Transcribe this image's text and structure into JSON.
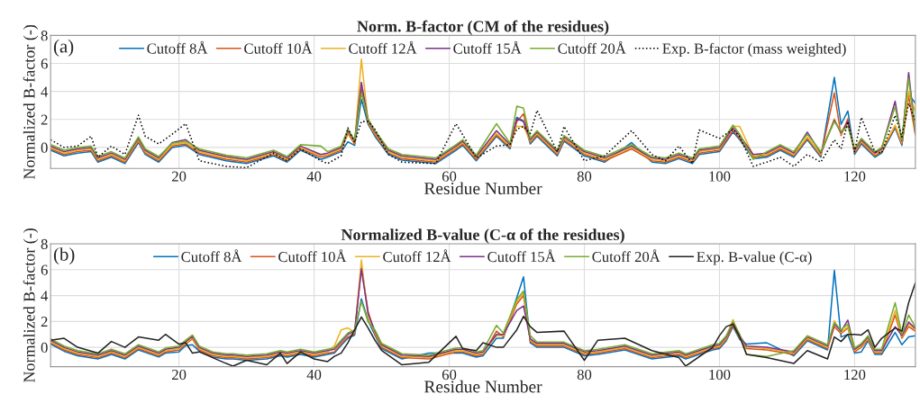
{
  "chart_data": [
    {
      "type": "line",
      "title": "Norm. B-factor (CM of the residues)",
      "xlabel": "Residue Number",
      "ylabel": "Normalized B-factor (-)",
      "annotations": [
        "(a)"
      ],
      "x": [
        1,
        3,
        5,
        7,
        8,
        10,
        12,
        14,
        15,
        17,
        19,
        21,
        23,
        27,
        30,
        34,
        36,
        38,
        41,
        42,
        44,
        45,
        46,
        47,
        48,
        49,
        51,
        53,
        58,
        61,
        62,
        64,
        67,
        69,
        70,
        71,
        72,
        73,
        76,
        77,
        80,
        83,
        87,
        90,
        92,
        94,
        96,
        97,
        100,
        102,
        103,
        105,
        107,
        109,
        111,
        113,
        115,
        117,
        118,
        119,
        120,
        121,
        123,
        124,
        126,
        127,
        128,
        129
      ],
      "xlim": [
        1,
        129
      ],
      "xticks": [
        20,
        40,
        60,
        80,
        100,
        120
      ],
      "ylim": [
        -1.5,
        8
      ],
      "yticks": [
        0,
        2,
        4,
        6,
        8
      ],
      "grid": true,
      "legend": "top",
      "line_style": "solid",
      "series": [
        {
          "name": "Cutoff 8Å",
          "color": "#0072bd",
          "values": [
            -0.2,
            -0.6,
            -0.4,
            -0.3,
            -1.05,
            -0.7,
            -1.15,
            0.35,
            -0.5,
            -1.05,
            0,
            0.15,
            -0.5,
            -0.95,
            -1.15,
            -0.6,
            -1.05,
            -0.2,
            -0.85,
            -0.7,
            -0.3,
            0.4,
            0.15,
            3.45,
            1.65,
            0.8,
            -0.5,
            -0.9,
            -1.15,
            -0.2,
            0.15,
            -0.95,
            0.8,
            -0.1,
            2.15,
            1.9,
            0.25,
            0.8,
            -0.6,
            0.45,
            -0.6,
            -1.05,
            0.35,
            -1.05,
            -1.15,
            -0.8,
            -1.15,
            -0.5,
            -0.3,
            1.1,
            0.55,
            -0.8,
            -0.7,
            -0.2,
            -0.7,
            0.55,
            -0.7,
            5.0,
            1.65,
            2.6,
            -0.5,
            0.25,
            -0.7,
            -0.4,
            1.4,
            0.15,
            3.8,
            3.15
          ]
        },
        {
          "name": "Cutoff 10Å",
          "color": "#d95319",
          "values": [
            -0.1,
            -0.5,
            -0.3,
            -0.2,
            -0.95,
            -0.6,
            -1.05,
            0.45,
            -0.4,
            -0.95,
            0.1,
            0.25,
            -0.4,
            -0.85,
            -1.05,
            -0.5,
            -0.95,
            -0.1,
            -0.7,
            -0.6,
            -0.2,
            1.0,
            0.25,
            4.2,
            1.75,
            0.9,
            -0.4,
            -0.8,
            -1.05,
            -0.1,
            0.25,
            -0.85,
            0.9,
            0,
            1.85,
            2.4,
            0.35,
            0.9,
            -0.5,
            0.55,
            -0.5,
            -0.95,
            -0.1,
            -0.95,
            -1.05,
            -0.7,
            -1.05,
            -0.4,
            -0.2,
            1.2,
            0.65,
            -0.7,
            -0.6,
            -0.1,
            -0.6,
            0.65,
            -0.6,
            3.9,
            0.85,
            2.05,
            -0.4,
            0.35,
            -0.6,
            -0.3,
            1.5,
            0.25,
            3.7,
            0.9
          ]
        },
        {
          "name": "Cutoff 12Å",
          "color": "#edb120",
          "values": [
            0,
            -0.4,
            -0.2,
            -0.1,
            -0.85,
            -0.5,
            -0.95,
            0.55,
            -0.3,
            -0.85,
            0.2,
            0.35,
            -0.3,
            -0.75,
            -0.95,
            -0.4,
            -0.85,
            0,
            -0.6,
            -0.5,
            -0.1,
            1.1,
            0.35,
            6.3,
            1.85,
            1.0,
            -0.3,
            -0.7,
            -0.95,
            0,
            0.35,
            -0.75,
            1.0,
            0.1,
            1.5,
            1.5,
            0.45,
            1.0,
            -0.4,
            0.65,
            -0.4,
            -0.85,
            0,
            -0.85,
            -0.95,
            -0.6,
            -0.95,
            -0.3,
            -0.1,
            1.5,
            1.5,
            -0.6,
            -0.5,
            0,
            -0.5,
            0.75,
            -0.5,
            2.05,
            0.95,
            1.7,
            -0.3,
            0.45,
            -0.5,
            -0.2,
            1.6,
            0.35,
            4.0,
            2.5
          ]
        },
        {
          "name": "Cutoff 15Å",
          "color": "#7e2f8e",
          "values": [
            0.1,
            -0.3,
            -0.1,
            0,
            -0.75,
            -0.4,
            -0.85,
            0.65,
            -0.2,
            -0.75,
            0.35,
            0.55,
            -0.2,
            -0.65,
            -0.85,
            -0.3,
            -0.75,
            0.1,
            -0.5,
            -0.4,
            0,
            1.2,
            0.45,
            4.65,
            1.95,
            1.1,
            -0.2,
            -0.6,
            -0.85,
            0.1,
            0.45,
            -0.65,
            1.2,
            0.2,
            2.05,
            1.85,
            0.55,
            1.1,
            -0.3,
            0.75,
            -0.3,
            -0.75,
            0.1,
            -0.75,
            -0.85,
            -0.5,
            -0.85,
            -0.2,
            0,
            1.4,
            0.85,
            -0.5,
            -0.4,
            0.1,
            -0.4,
            1.1,
            -0.4,
            1.95,
            1.05,
            1.85,
            -0.2,
            0.55,
            -0.4,
            -0.1,
            3.3,
            0.45,
            5.35,
            1.0
          ]
        },
        {
          "name": "Cutoff 20Å",
          "color": "#77ac30",
          "values": [
            0.2,
            -0.2,
            0,
            0.1,
            -0.65,
            -0.3,
            -0.75,
            0.75,
            -0.1,
            -0.65,
            0.3,
            0.45,
            -0.1,
            -0.55,
            -0.75,
            -0.2,
            -0.65,
            0.2,
            0.1,
            -0.3,
            0.1,
            1.3,
            0.55,
            3.9,
            2.05,
            1.2,
            -0.1,
            -0.5,
            -0.75,
            0.2,
            0.55,
            -0.55,
            1.7,
            0.3,
            2.95,
            2.8,
            0.65,
            1.2,
            -0.2,
            0.85,
            -0.2,
            -0.65,
            0.2,
            -0.65,
            -0.75,
            -0.4,
            -0.75,
            -0.1,
            0.1,
            1.6,
            0.95,
            -0.85,
            -0.3,
            0.2,
            -0.3,
            0.95,
            -0.3,
            1.85,
            1.15,
            1.5,
            -0.1,
            0.65,
            -0.3,
            0,
            2.9,
            0.55,
            4.95,
            1.1
          ]
        },
        {
          "name": "Exp. B-factor (mass weighted)",
          "color": "#000000",
          "line_style": "dotted",
          "values": [
            0.55,
            0,
            0.1,
            0.8,
            -0.7,
            0.1,
            -0.5,
            2.3,
            0.8,
            0.25,
            0.95,
            1.7,
            -0.95,
            -1.35,
            -1.45,
            -0.4,
            -0.95,
            -0.1,
            -0.95,
            -1.15,
            -0.6,
            1.4,
            0.35,
            1.85,
            1.85,
            1.3,
            -0.5,
            -1.05,
            -1.15,
            1.7,
            0.9,
            -0.75,
            0.1,
            0.2,
            1.3,
            1.5,
            1.0,
            2.65,
            -0.3,
            1.5,
            -0.95,
            -0.6,
            1.2,
            -0.5,
            -0.95,
            0.1,
            -1.15,
            1.25,
            0.65,
            1.3,
            0.75,
            -1.35,
            -1.05,
            -0.7,
            -1.35,
            -0.5,
            -1.05,
            0.55,
            -0.1,
            1.85,
            -0.3,
            2.15,
            -0.3,
            -0.4,
            2.3,
            0.75,
            3.15,
            1.85
          ]
        }
      ]
    },
    {
      "type": "line",
      "title": "Normalized B-value (C-α of the residues)",
      "xlabel": "Residue Number",
      "ylabel": "Normalized B-factor (-)",
      "annotations": [
        "(b)"
      ],
      "x": [
        1,
        3,
        5,
        8,
        10,
        12,
        14,
        17,
        18,
        20,
        21,
        22,
        23,
        25,
        27,
        28,
        30,
        33,
        35,
        36,
        38,
        40,
        42,
        43,
        44,
        45,
        46,
        47,
        48,
        49,
        50,
        53,
        57,
        61,
        62,
        64,
        65,
        67,
        68,
        70,
        71,
        72,
        73,
        77,
        80,
        82,
        86,
        90,
        94,
        95,
        99,
        100,
        101,
        102,
        103,
        104,
        107,
        111,
        113,
        116,
        117,
        118,
        119,
        120,
        121,
        122,
        123,
        124,
        126,
        127,
        128,
        129
      ],
      "xlim": [
        1,
        129
      ],
      "xticks": [
        20,
        40,
        60,
        80,
        100,
        120
      ],
      "ylim": [
        -1.5,
        8
      ],
      "yticks": [
        0,
        2,
        4,
        6,
        8
      ],
      "grid": true,
      "legend": "top",
      "line_style": "solid",
      "series": [
        {
          "name": "Cutoff 8Å",
          "color": "#0072bd",
          "values": [
            0.25,
            -0.3,
            -0.65,
            -0.9,
            -0.55,
            -0.9,
            -0.2,
            -0.75,
            -0.45,
            -0.35,
            0.15,
            0.2,
            -0.3,
            -0.75,
            -0.9,
            -0.9,
            -1.0,
            -0.9,
            -0.65,
            -0.75,
            -0.55,
            -0.75,
            -0.55,
            -0.45,
            0.15,
            0.7,
            0.95,
            3.75,
            2.05,
            0.95,
            -0.1,
            -0.9,
            -0.45,
            -0.45,
            -0.45,
            -0.75,
            -0.65,
            0.7,
            0.7,
            3.85,
            5.45,
            0.35,
            0,
            0,
            -0.65,
            -0.55,
            -0.2,
            -0.9,
            -0.65,
            -0.9,
            -0.2,
            -0.1,
            0.5,
            1.6,
            0.6,
            0.25,
            0.35,
            -0.65,
            0.5,
            -0.2,
            5.95,
            0.8,
            1.0,
            -0.45,
            -0.35,
            0.5,
            -0.55,
            -0.55,
            1.15,
            0.2,
            0.8,
            0.9
          ]
        },
        {
          "name": "Cutoff 10Å",
          "color": "#d95319",
          "values": [
            0.35,
            -0.2,
            -0.55,
            -0.8,
            -0.45,
            -0.8,
            -0.1,
            -0.65,
            -0.35,
            -0.2,
            0.25,
            0.65,
            -0.2,
            -0.65,
            -0.8,
            -0.8,
            -0.9,
            -0.8,
            -0.55,
            -0.65,
            -0.45,
            -0.65,
            -0.45,
            -0.35,
            0.25,
            0.8,
            1.05,
            6.25,
            2.75,
            1.05,
            0,
            -0.8,
            -0.9,
            -0.35,
            -0.35,
            -0.65,
            -0.55,
            1.25,
            0.8,
            3.35,
            4.0,
            0.45,
            0.1,
            0.1,
            -0.55,
            -0.45,
            -0.1,
            -0.8,
            -0.55,
            -0.8,
            -0.1,
            0,
            0.6,
            1.7,
            0.7,
            -0.1,
            -0.2,
            -0.55,
            0.6,
            -0.1,
            1.6,
            1.05,
            1.5,
            -0.35,
            0,
            0.6,
            -0.45,
            -0.45,
            2.5,
            0.7,
            1.6,
            1.25
          ]
        },
        {
          "name": "Cutoff 12Å",
          "color": "#edb120",
          "values": [
            0.45,
            -0.1,
            -0.45,
            -0.7,
            -0.35,
            -0.7,
            0,
            -0.55,
            -0.25,
            -0.1,
            0.35,
            0.75,
            -0.1,
            -0.55,
            -0.7,
            -0.7,
            -0.8,
            -0.7,
            -0.45,
            -0.55,
            -0.35,
            -0.55,
            -0.35,
            0.1,
            1.35,
            1.5,
            1.15,
            6.75,
            2.3,
            1.15,
            0.1,
            -0.7,
            -0.8,
            -0.25,
            -0.25,
            -0.55,
            -0.45,
            0.9,
            0.9,
            3.55,
            4.2,
            0.55,
            0.2,
            0.2,
            -0.45,
            -0.35,
            0,
            -0.7,
            -0.45,
            -0.7,
            0,
            0.1,
            0.7,
            2.15,
            0.8,
            0,
            -0.1,
            -0.45,
            0.7,
            0,
            2.05,
            1.15,
            1.6,
            -0.25,
            0.1,
            0.7,
            -0.35,
            -0.35,
            2.85,
            0.8,
            1.8,
            1.35
          ]
        },
        {
          "name": "Cutoff 15Å",
          "color": "#7e2f8e",
          "values": [
            0.55,
            0,
            -0.35,
            -0.6,
            -0.25,
            -0.6,
            0.1,
            -0.45,
            -0.15,
            0,
            0.45,
            0.85,
            0,
            -0.45,
            -0.6,
            -0.6,
            -0.7,
            -0.6,
            -0.35,
            -0.45,
            -0.25,
            -0.45,
            -0.25,
            -0.15,
            0.45,
            1.0,
            1.25,
            6.05,
            2.6,
            1.25,
            0.2,
            -0.6,
            -0.7,
            -0.15,
            -0.15,
            -0.45,
            -0.35,
            1.0,
            1.0,
            2.85,
            3.2,
            0.65,
            0.3,
            0.3,
            -0.35,
            -0.25,
            0.1,
            -0.6,
            -0.35,
            -0.6,
            0.1,
            0.2,
            0.8,
            1.9,
            0.9,
            0.1,
            0,
            -0.35,
            0.8,
            0.1,
            1.8,
            1.25,
            2.1,
            -0.15,
            0.2,
            0.8,
            -0.25,
            -0.25,
            1.6,
            0.9,
            1.95,
            1.45
          ]
        },
        {
          "name": "Cutoff 20Å",
          "color": "#77ac30",
          "values": [
            0.65,
            0.1,
            -0.25,
            -0.5,
            -0.15,
            -0.5,
            0.2,
            -0.35,
            -0.05,
            0.1,
            0.55,
            0.95,
            0.1,
            -0.35,
            -0.5,
            -0.5,
            -0.6,
            -0.5,
            -0.25,
            -0.35,
            -0.15,
            -0.35,
            -0.15,
            -0.05,
            0.55,
            1.1,
            1.35,
            3.55,
            1.95,
            1.35,
            0.3,
            -0.5,
            -0.6,
            -0.05,
            -0.05,
            -0.35,
            -0.25,
            1.7,
            1.1,
            3.7,
            4.35,
            0.9,
            0.4,
            0.4,
            -0.25,
            -0.15,
            0.2,
            -0.5,
            -0.25,
            -0.5,
            0.2,
            0.3,
            0.9,
            2.0,
            1.0,
            -0.55,
            -0.7,
            -0.25,
            0.9,
            0.2,
            1.9,
            1.35,
            1.8,
            -0.05,
            0.3,
            0.9,
            -0.15,
            -0.15,
            3.45,
            1.0,
            2.5,
            1.55
          ]
        },
        {
          "name": "Exp. B-value (C-α)",
          "color": "#222222",
          "line_style": "solid",
          "values": [
            0.55,
            0.7,
            0,
            -0.45,
            0.45,
            0,
            0.8,
            0.55,
            1.0,
            0.25,
            0.35,
            -0.45,
            -0.35,
            -0.8,
            -1.25,
            -1.45,
            -1.0,
            -1.35,
            -0.45,
            -1.25,
            -0.35,
            -0.9,
            -1.1,
            -0.7,
            -0.45,
            0.35,
            1.35,
            2.35,
            1.5,
            0.55,
            -0.25,
            -1.35,
            -1.15,
            0.85,
            -0.1,
            -0.25,
            0.35,
            0,
            0,
            1.35,
            2.4,
            1.6,
            1.15,
            1.25,
            -1.0,
            0.55,
            0.7,
            -0.25,
            -0.8,
            -1.45,
            0,
            0.9,
            1.6,
            1.8,
            0.8,
            -0.55,
            -0.8,
            -1.25,
            -0.25,
            -0.9,
            0.8,
            0.45,
            1.0,
            1.0,
            0.95,
            1.35,
            0,
            0.7,
            1.5,
            1.25,
            3.45,
            5.0
          ]
        }
      ]
    }
  ]
}
